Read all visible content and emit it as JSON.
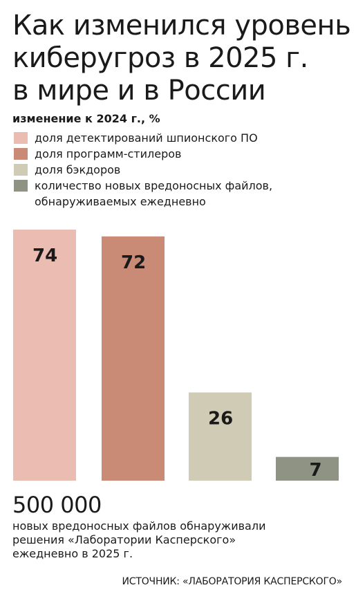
{
  "title_lines": [
    "Как изменился уровень",
    "киберугроз в 2025 г.",
    "в мире и в России"
  ],
  "subtitle": "изменение к 2024 г., %",
  "legend": [
    {
      "label": "доля детектирований шпионского ПО",
      "color": "#ebbdb2"
    },
    {
      "label": "доля программ-стилеров",
      "color": "#c98b76"
    },
    {
      "label": "доля бэкдоров",
      "color": "#cfcbb4"
    },
    {
      "label": "количество новых вредоносных файлов,\nобнаруживаемых ежедневно",
      "color": "#8f9383"
    }
  ],
  "chart_data": {
    "type": "bar",
    "categories": [
      "доля детектирований шпионского ПО",
      "доля программ-стилеров",
      "доля бэкдоров",
      "количество новых вредоносных файлов, обнаруживаемых ежедневно"
    ],
    "values": [
      74,
      72,
      26,
      7
    ],
    "data_labels": [
      "74",
      "72",
      "26",
      "7"
    ],
    "colors": [
      "#ebbdb2",
      "#c98b76",
      "#cfcbb4",
      "#8f9383"
    ],
    "ylim": [
      0,
      74
    ]
  },
  "big_number": "500 000",
  "note_lines": [
    "новых вредоносных файлов обнаруживали",
    "решения «Лаборатории Касперского»",
    "ежедневно в 2025 г."
  ],
  "source": "ИСТОЧНИК: «ЛАБОРАТОРИЯ КАСПЕРСКОГО»"
}
